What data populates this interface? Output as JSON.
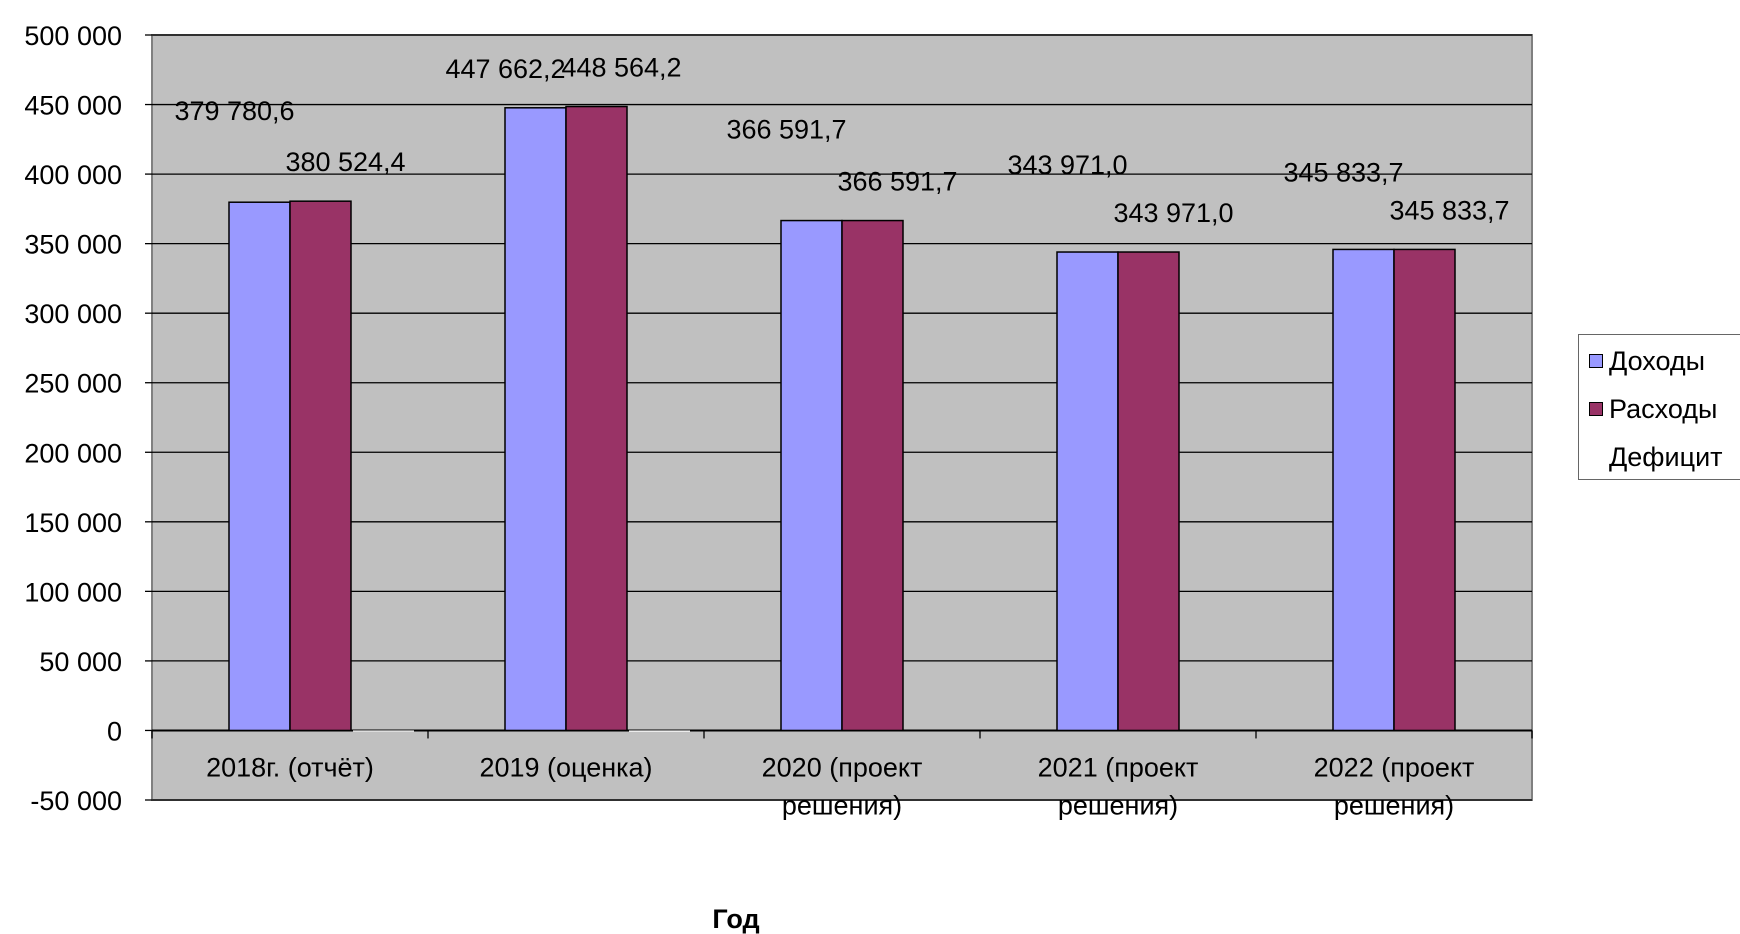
{
  "chart_data": {
    "type": "bar",
    "title": "",
    "xlabel": "Год",
    "ylabel": "",
    "ylim": [
      -50000,
      500000
    ],
    "yticks": [
      500000,
      450000,
      400000,
      350000,
      300000,
      250000,
      200000,
      150000,
      100000,
      50000,
      0,
      -50000
    ],
    "ytick_labels": [
      "500 000",
      "450 000",
      "400 000",
      "350 000",
      "300 000",
      "250 000",
      "200 000",
      "150 000",
      "100 000",
      "50 000",
      "0",
      "-50 000"
    ],
    "grid": true,
    "legend_position": "right",
    "categories": [
      [
        "2018г. (отчёт)"
      ],
      [
        "2019 (оценка)"
      ],
      [
        "2020 (проект",
        "решения)"
      ],
      [
        "2021 (проект",
        "решения)"
      ],
      [
        "2022 (проект",
        "решения)"
      ]
    ],
    "series": [
      {
        "name": "Доходы",
        "color": "#9999ff",
        "values": [
          379780.6,
          447662.2,
          366591.7,
          343971.0,
          345833.7
        ],
        "labels": [
          "379 780,6",
          "447 662,2",
          "366 591,7",
          "343 971,0",
          "345 833,7"
        ]
      },
      {
        "name": "Расходы",
        "color": "#993366",
        "values": [
          380524.4,
          448564.2,
          366591.7,
          343971.0,
          345833.7
        ],
        "labels": [
          "380 524,4",
          "448 564,2",
          "366 591,7",
          "343 971,0",
          "345 833,7"
        ]
      },
      {
        "name": "Дефицит",
        "color": "#ffffff",
        "values": [
          -743.8,
          -901.9,
          0,
          0,
          0
        ]
      }
    ],
    "plot_bg": "#c0c0c0"
  }
}
